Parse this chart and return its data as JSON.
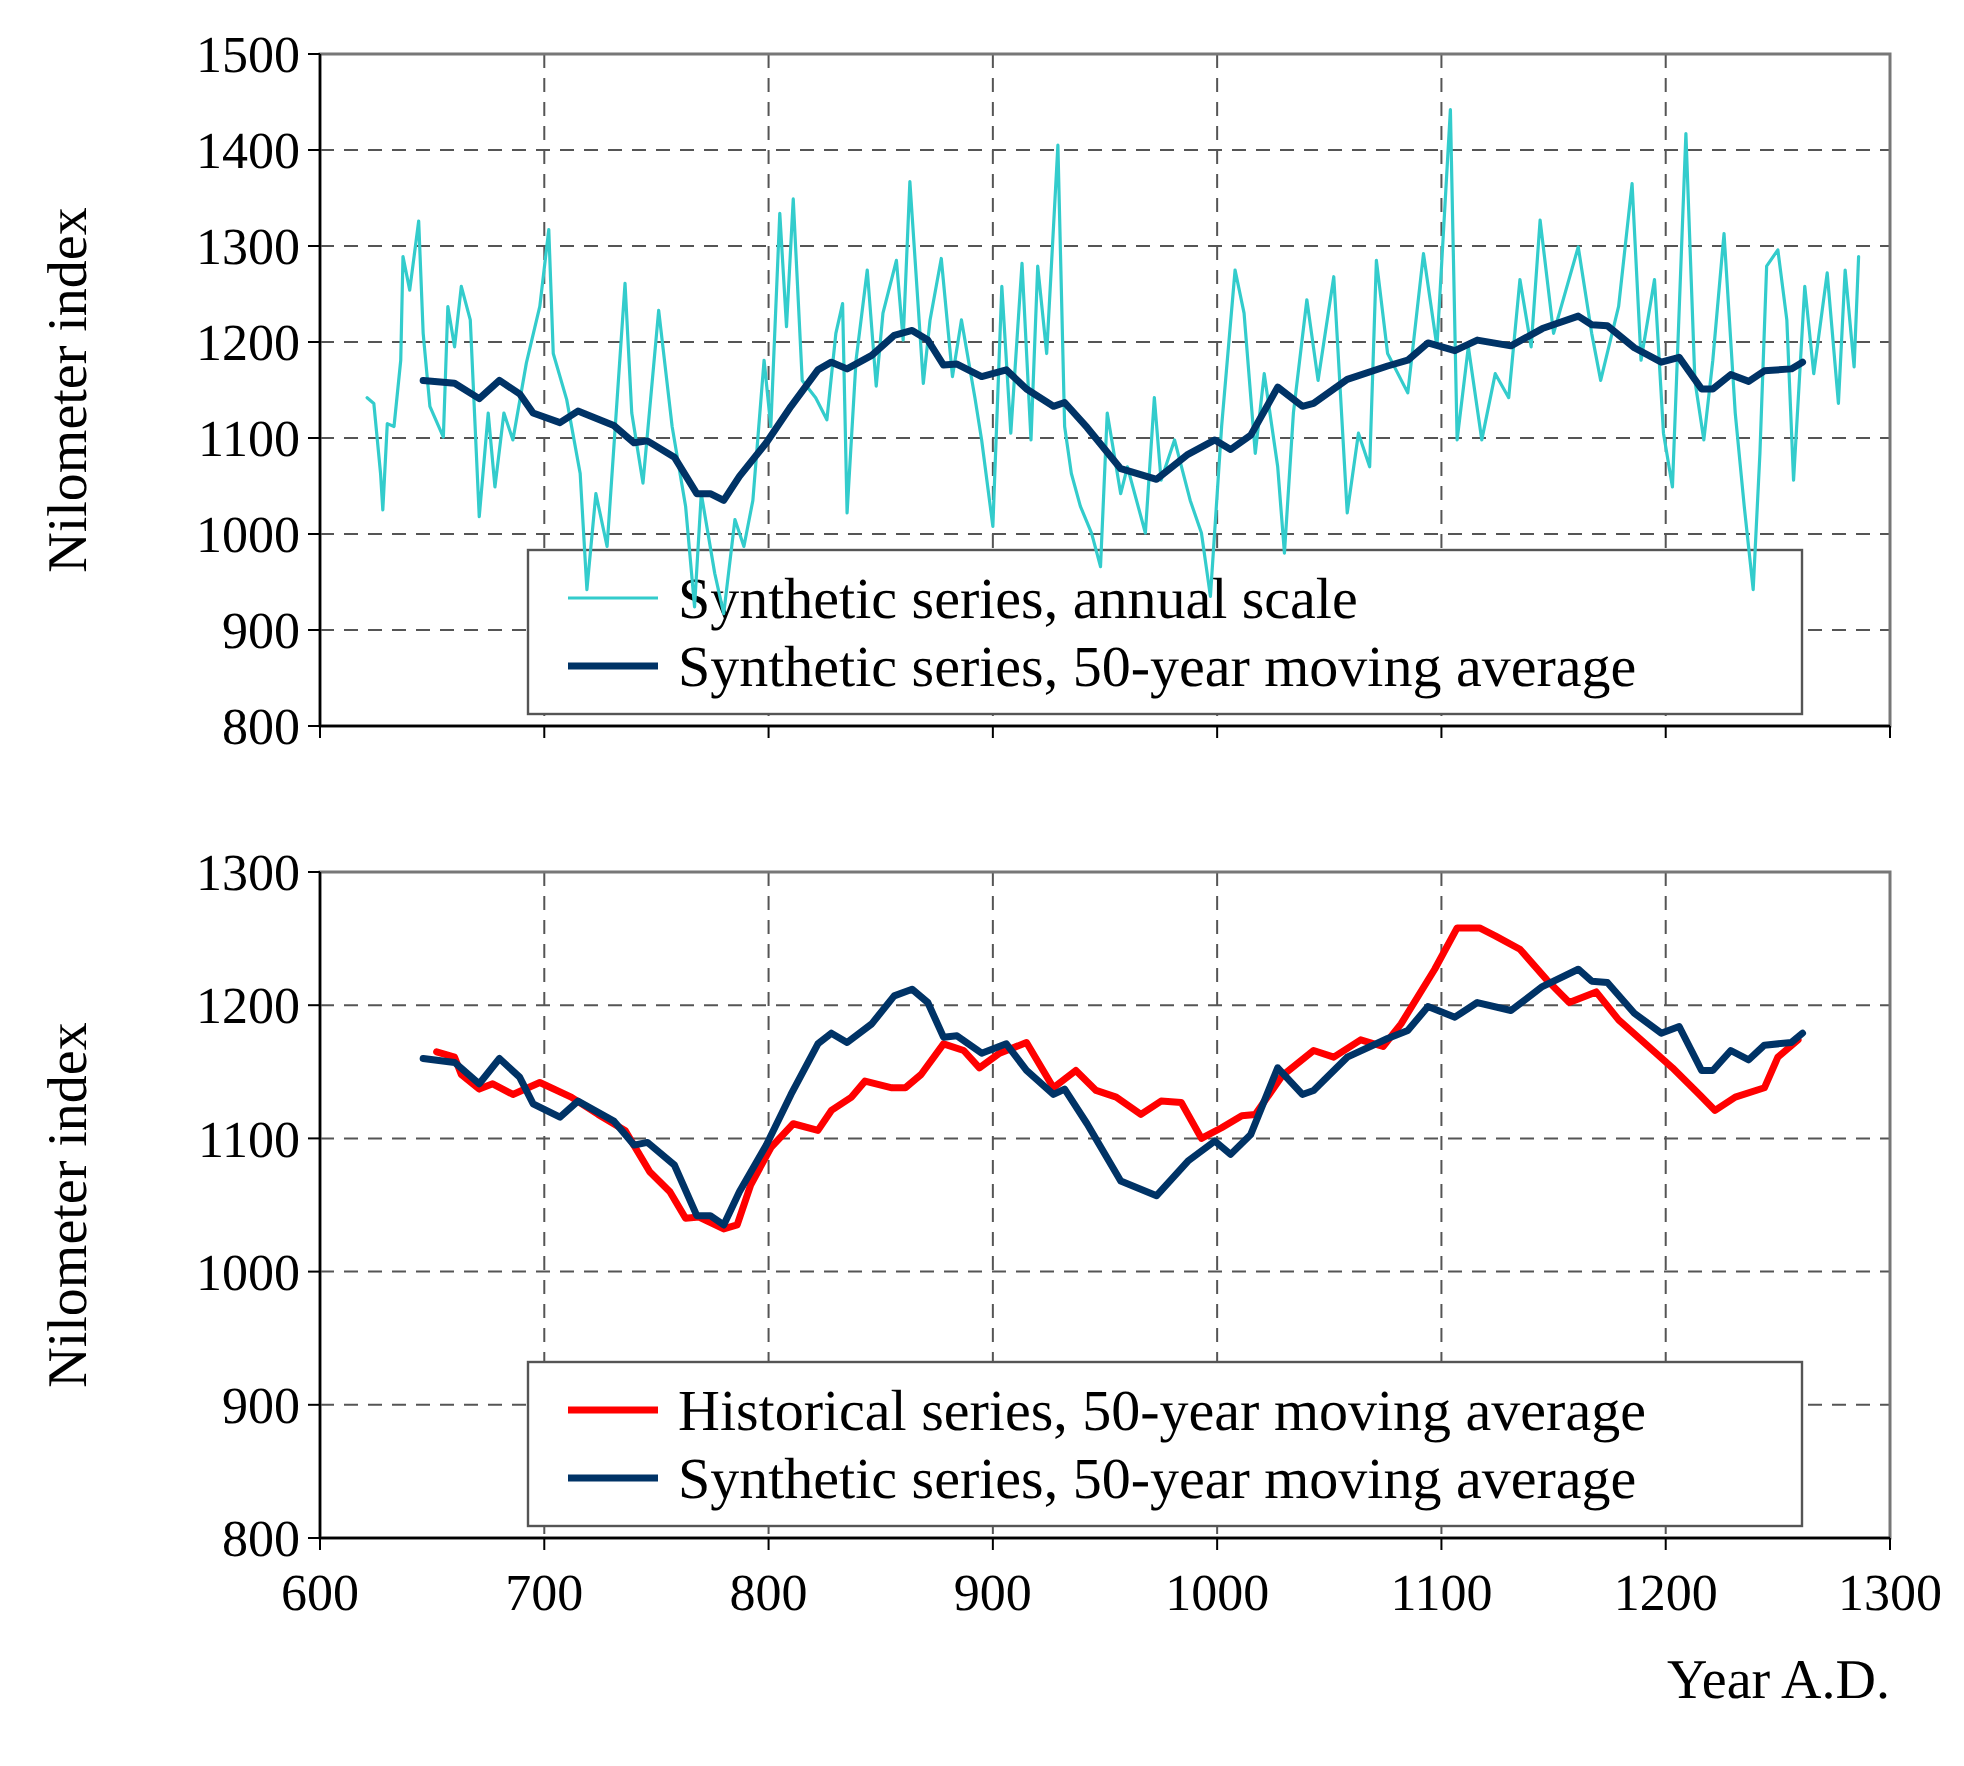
{
  "chart_data": [
    {
      "type": "line",
      "ylabel": "Nilometer index",
      "xlim": [
        600,
        1300
      ],
      "xticks": [
        600,
        700,
        800,
        900,
        1000,
        1100,
        1200,
        1300
      ],
      "ylim": [
        800,
        1500
      ],
      "yticks": [
        800,
        900,
        1000,
        1100,
        1200,
        1300,
        1400,
        1500
      ],
      "grid": true,
      "legend": "bottom right",
      "tick_labels": "y",
      "line_style": "solid",
      "marker": "none",
      "series": [
        {
          "name": "Synthetic series, annual scale",
          "color": "#33cccc",
          "x": [
            621,
            624,
            627,
            628,
            630,
            633,
            636,
            637,
            640,
            644,
            646,
            649,
            655,
            657,
            660,
            663,
            667,
            671,
            675,
            678,
            682,
            686,
            692,
            698,
            702,
            704,
            710,
            716,
            719,
            723,
            728,
            736,
            739,
            744,
            751,
            757,
            763,
            767,
            770,
            776,
            780,
            785,
            789,
            793,
            798,
            801,
            805,
            808,
            811,
            815,
            821,
            826,
            830,
            833,
            835,
            839,
            844,
            848,
            851,
            857,
            860,
            863,
            869,
            872,
            877,
            882,
            886,
            892,
            895,
            900,
            904,
            908,
            913,
            917,
            920,
            924,
            929,
            932,
            935,
            939,
            944,
            948,
            951,
            957,
            960,
            968,
            972,
            975,
            981,
            988,
            993,
            997,
            1002,
            1008,
            1012,
            1017,
            1021,
            1027,
            1030,
            1034,
            1040,
            1045,
            1052,
            1058,
            1063,
            1068,
            1071,
            1076,
            1085,
            1092,
            1098,
            1104,
            1107,
            1112,
            1118,
            1124,
            1130,
            1135,
            1140,
            1144,
            1150,
            1161,
            1167,
            1171,
            1179,
            1185,
            1189,
            1195,
            1199,
            1203,
            1209,
            1213,
            1217,
            1221,
            1226,
            1231,
            1235,
            1239,
            1242,
            1245,
            1250,
            1254,
            1257,
            1262,
            1266,
            1272,
            1277,
            1280,
            1284,
            1286
          ],
          "values": [
            1142,
            1136,
            1063,
            1025,
            1115,
            1112,
            1181,
            1289,
            1254,
            1326,
            1209,
            1133,
            1101,
            1237,
            1195,
            1258,
            1223,
            1018,
            1126,
            1049,
            1126,
            1098,
            1178,
            1237,
            1317,
            1188,
            1140,
            1063,
            942,
            1042,
            987,
            1261,
            1126,
            1053,
            1233,
            1112,
            1029,
            924,
            1042,
            959,
            917,
            1015,
            987,
            1035,
            1181,
            1112,
            1334,
            1216,
            1349,
            1160,
            1142,
            1119,
            1209,
            1240,
            1022,
            1181,
            1275,
            1154,
            1230,
            1285,
            1202,
            1367,
            1157,
            1223,
            1287,
            1164,
            1223,
            1142,
            1098,
            1008,
            1258,
            1105,
            1282,
            1098,
            1279,
            1188,
            1405,
            1112,
            1063,
            1029,
            1001,
            966,
            1126,
            1042,
            1070,
            1001,
            1142,
            1056,
            1098,
            1035,
            1001,
            935,
            1112,
            1275,
            1230,
            1084,
            1167,
            1070,
            980,
            1126,
            1244,
            1160,
            1268,
            1022,
            1105,
            1070,
            1285,
            1188,
            1147,
            1292,
            1195,
            1442,
            1098,
            1195,
            1098,
            1167,
            1142,
            1265,
            1195,
            1327,
            1209,
            1299,
            1209,
            1160,
            1237,
            1365,
            1181,
            1265,
            1105,
            1049,
            1417,
            1160,
            1098,
            1181,
            1313,
            1126,
            1029,
            942,
            1084,
            1279,
            1296,
            1223,
            1056,
            1258,
            1167,
            1272,
            1136,
            1275,
            1174,
            1289
          ]
        },
        {
          "name": "Synthetic series, 50-year moving average",
          "color": "#003366",
          "x": [
            646,
            660,
            671,
            680,
            689,
            695,
            707,
            715,
            731,
            740,
            746,
            758,
            768,
            774,
            780,
            787,
            799,
            810,
            822,
            828,
            835,
            846,
            856,
            864,
            871,
            878,
            884,
            895,
            906,
            915,
            927,
            932,
            942,
            957,
            973,
            987,
            999,
            1006,
            1015,
            1027,
            1038,
            1043,
            1058,
            1076,
            1085,
            1094,
            1106,
            1116,
            1131,
            1145,
            1161,
            1167,
            1174,
            1186,
            1198,
            1206,
            1216,
            1221,
            1229,
            1237,
            1244,
            1256,
            1261
          ],
          "values": [
            1160,
            1157,
            1141,
            1160,
            1146,
            1126,
            1116,
            1128,
            1113,
            1095,
            1097,
            1080,
            1042,
            1042,
            1035,
            1060,
            1095,
            1133,
            1171,
            1179,
            1172,
            1186,
            1207,
            1212,
            1202,
            1176,
            1177,
            1164,
            1171,
            1151,
            1133,
            1137,
            1111,
            1068,
            1057,
            1083,
            1098,
            1088,
            1103,
            1153,
            1133,
            1136,
            1161,
            1175,
            1181,
            1199,
            1191,
            1202,
            1196,
            1214,
            1227,
            1218,
            1217,
            1194,
            1179,
            1184,
            1151,
            1151,
            1166,
            1159,
            1170,
            1172,
            1179
          ]
        }
      ]
    },
    {
      "type": "line",
      "ylabel": "Nilometer index",
      "xlabel": "Year A.D.",
      "xlim": [
        600,
        1300
      ],
      "xticks": [
        600,
        700,
        800,
        900,
        1000,
        1100,
        1200,
        1300
      ],
      "ylim": [
        800,
        1300
      ],
      "yticks": [
        800,
        900,
        1000,
        1100,
        1200,
        1300
      ],
      "grid": true,
      "legend": "bottom right",
      "line_style": "solid",
      "marker": "none",
      "series": [
        {
          "name": "Historical series, 50-year moving average",
          "color": "#ff0000",
          "x": [
            652,
            660,
            663,
            671,
            677,
            686,
            698,
            712,
            724,
            736,
            747,
            756,
            763,
            769,
            780,
            786,
            792,
            801,
            811,
            822,
            828,
            837,
            843,
            855,
            861,
            868,
            878,
            887,
            894,
            903,
            915,
            927,
            937,
            946,
            955,
            966,
            975,
            984,
            993,
            1002,
            1011,
            1017,
            1029,
            1043,
            1052,
            1064,
            1074,
            1082,
            1097,
            1107,
            1117,
            1124,
            1135,
            1147,
            1157,
            1169,
            1179,
            1191,
            1203,
            1215,
            1222,
            1231,
            1244,
            1250,
            1259
          ],
          "values": [
            1165,
            1161,
            1148,
            1137,
            1141,
            1133,
            1142,
            1131,
            1118,
            1106,
            1075,
            1060,
            1040,
            1041,
            1032,
            1035,
            1065,
            1093,
            1111,
            1106,
            1121,
            1131,
            1143,
            1138,
            1138,
            1148,
            1171,
            1166,
            1153,
            1164,
            1172,
            1138,
            1151,
            1136,
            1131,
            1118,
            1128,
            1127,
            1100,
            1108,
            1117,
            1118,
            1147,
            1166,
            1161,
            1174,
            1169,
            1186,
            1227,
            1258,
            1258,
            1252,
            1242,
            1219,
            1202,
            1210,
            1189,
            1171,
            1153,
            1133,
            1121,
            1131,
            1138,
            1161,
            1174
          ]
        },
        {
          "name": "Synthetic series, 50-year moving average",
          "color": "#003366",
          "x": [
            646,
            660,
            671,
            680,
            689,
            695,
            707,
            715,
            731,
            740,
            746,
            758,
            768,
            774,
            780,
            787,
            799,
            810,
            822,
            828,
            835,
            846,
            856,
            864,
            871,
            878,
            884,
            895,
            906,
            915,
            927,
            932,
            942,
            957,
            973,
            987,
            999,
            1006,
            1015,
            1027,
            1038,
            1043,
            1058,
            1076,
            1085,
            1094,
            1106,
            1116,
            1131,
            1145,
            1161,
            1167,
            1174,
            1186,
            1198,
            1206,
            1216,
            1221,
            1229,
            1237,
            1244,
            1256,
            1261
          ],
          "values": [
            1160,
            1157,
            1141,
            1160,
            1146,
            1126,
            1116,
            1128,
            1113,
            1095,
            1097,
            1080,
            1042,
            1042,
            1035,
            1060,
            1095,
            1133,
            1171,
            1179,
            1172,
            1186,
            1207,
            1212,
            1202,
            1176,
            1177,
            1164,
            1171,
            1151,
            1133,
            1137,
            1111,
            1068,
            1057,
            1083,
            1098,
            1088,
            1103,
            1153,
            1133,
            1136,
            1161,
            1175,
            1181,
            1199,
            1191,
            1202,
            1196,
            1214,
            1227,
            1218,
            1217,
            1194,
            1179,
            1184,
            1151,
            1151,
            1166,
            1159,
            1170,
            1172,
            1179
          ]
        }
      ]
    }
  ]
}
